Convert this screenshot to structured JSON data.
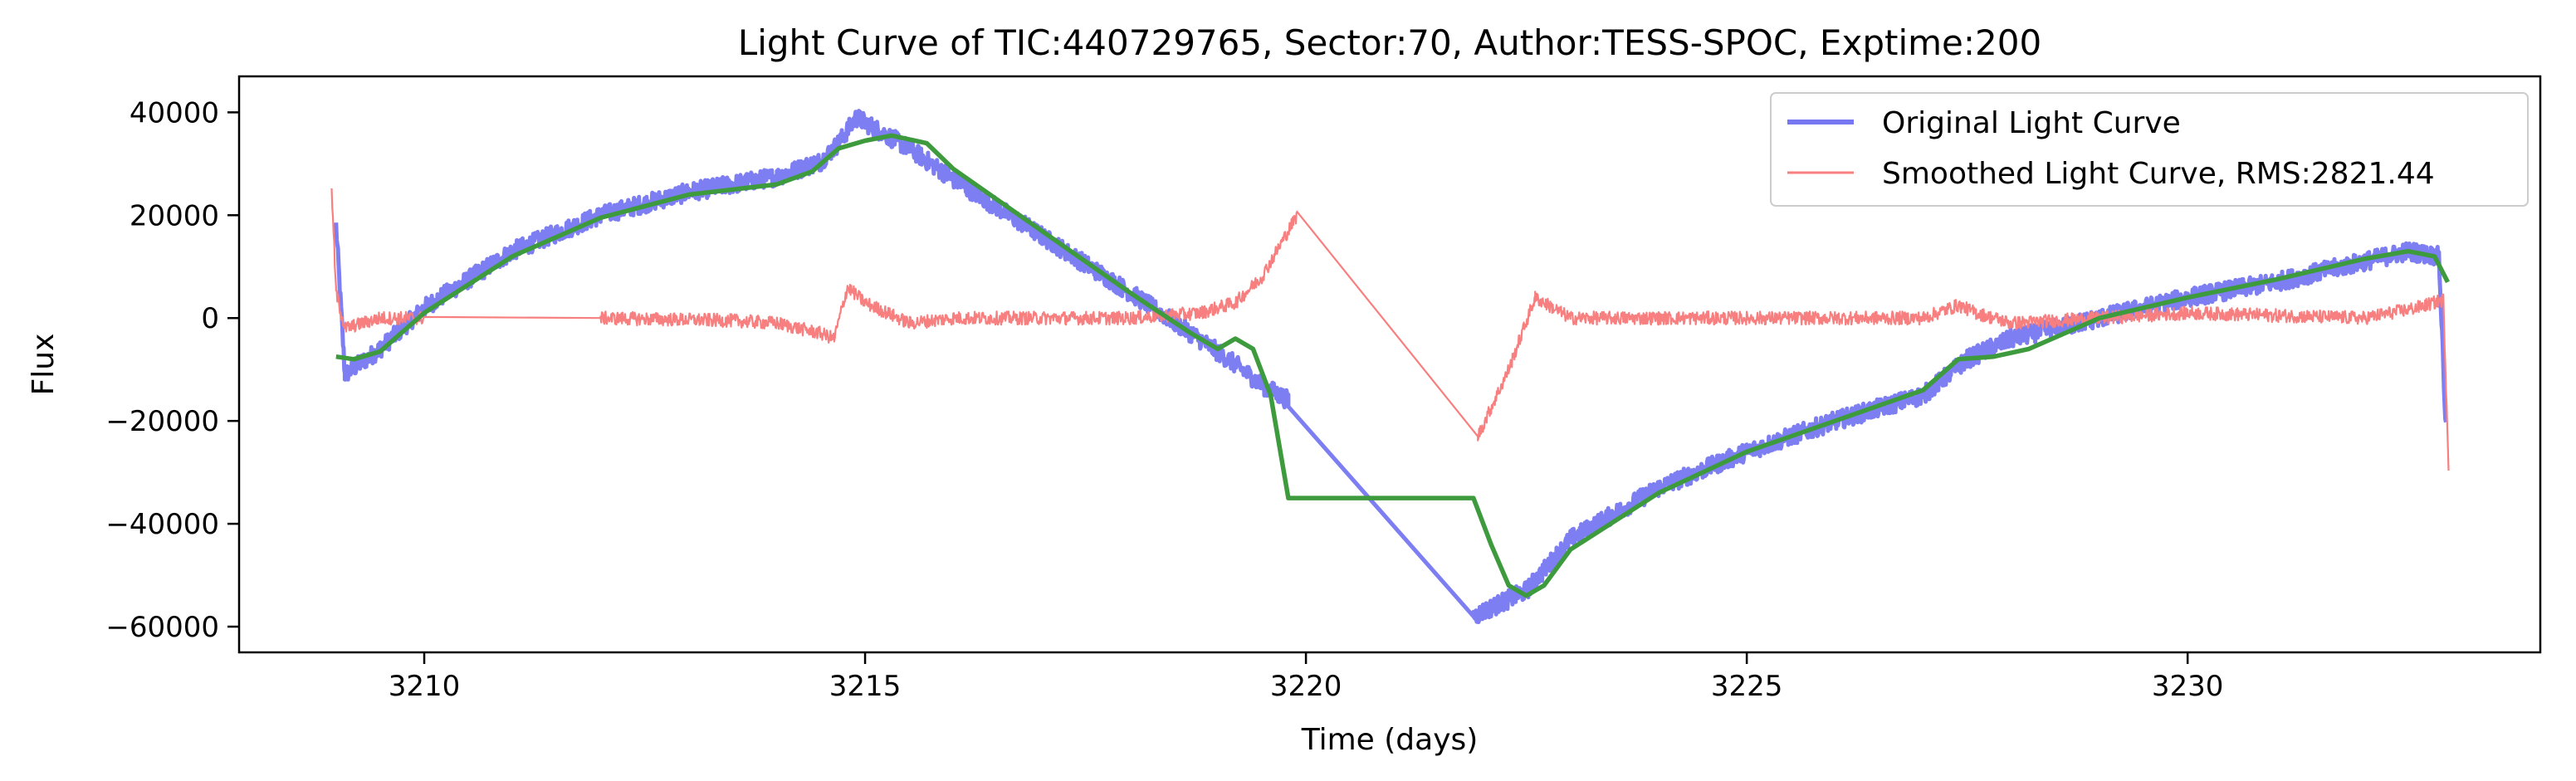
{
  "chart_data": {
    "type": "line",
    "title": "Light Curve of TIC:440729765, Sector:70, Author:TESS-SPOC, Exptime:200",
    "xlabel": "Time (days)",
    "ylabel": "Flux",
    "xlim": [
      3207.9,
      3234.0
    ],
    "ylim": [
      -65000,
      47000
    ],
    "xticks": [
      3210,
      3215,
      3220,
      3225,
      3230
    ],
    "xtick_labels": [
      "3210",
      "3215",
      "3220",
      "3225",
      "3230"
    ],
    "yticks": [
      -60000,
      -40000,
      -20000,
      0,
      20000,
      40000
    ],
    "ytick_labels": [
      "−60000",
      "−40000",
      "−20000",
      "0",
      "20000",
      "40000"
    ],
    "grid": false,
    "legend_position": "top-right",
    "series": [
      {
        "name": "Original Light Curve",
        "color": "#7777f2",
        "noise": 1800,
        "x": [
          3209.0,
          3209.1,
          3209.5,
          3210.0,
          3211.0,
          3212.0,
          3213.0,
          3214.0,
          3214.5,
          3214.7,
          3214.9,
          3215.5,
          3216.0,
          3217.0,
          3218.0,
          3218.7,
          3219.2,
          3219.5,
          3219.8,
          3221.9,
          3222.5,
          3223.0,
          3224.0,
          3225.0,
          3226.0,
          3227.0,
          3227.5,
          3228.0,
          3229.0,
          3230.0,
          3231.0,
          3232.0,
          3232.5,
          3232.85,
          3232.93
        ],
        "y": [
          18000,
          -11000,
          -6000,
          2000,
          13000,
          20000,
          24500,
          27500,
          30500,
          34000,
          39000,
          33000,
          27000,
          16000,
          5000,
          -3000,
          -9000,
          -13000,
          -16000,
          -58000,
          -53000,
          -43000,
          -33000,
          -26000,
          -20000,
          -15000,
          -8000,
          -4000,
          0,
          4000,
          7000,
          11000,
          13000,
          12000,
          -22000
        ]
      },
      {
        "name": "Smoothed Light Curve, RMS:2821.44",
        "color": "#f87f7f",
        "noise": 1300,
        "x": [
          3208.95,
          3209.0,
          3209.1,
          3209.5,
          3210.0,
          3212.0,
          3213.5,
          3214.0,
          3214.5,
          3214.65,
          3214.8,
          3215.0,
          3215.5,
          3216.0,
          3217.0,
          3218.0,
          3218.8,
          3219.2,
          3219.5,
          3219.9,
          3221.95,
          3222.3,
          3222.6,
          3223.0,
          3224.0,
          3225.0,
          3226.0,
          3227.0,
          3227.4,
          3227.6,
          3228.0,
          3229.0,
          3230.0,
          3231.0,
          3232.0,
          3232.6,
          3232.9,
          3232.96
        ],
        "y": [
          25000,
          5000,
          -2000,
          0,
          0,
          0,
          -500,
          -1000,
          -3000,
          -4000,
          6000,
          3000,
          -1000,
          0,
          0,
          0,
          1000,
          3000,
          8000,
          20000,
          -23000,
          -10000,
          4000,
          0,
          0,
          0,
          0,
          0,
          2500,
          1000,
          -1000,
          0,
          1000,
          500,
          0,
          2000,
          3500,
          -29000
        ]
      },
      {
        "color": "#3d9a3d",
        "noise": 0,
        "x": [
          3209.0,
          3209.2,
          3209.5,
          3210.0,
          3211.0,
          3212.0,
          3213.0,
          3214.0,
          3214.4,
          3214.7,
          3215.0,
          3215.3,
          3215.7,
          3216.0,
          3217.0,
          3218.0,
          3218.7,
          3219.0,
          3219.2,
          3219.4,
          3219.6,
          3219.8,
          3221.9,
          3222.1,
          3222.3,
          3222.5,
          3222.7,
          3223.0,
          3224.0,
          3225.0,
          3226.0,
          3227.0,
          3227.4,
          3227.8,
          3228.2,
          3229.0,
          3230.0,
          3231.0,
          3232.0,
          3232.5,
          3232.8,
          3232.95
        ],
        "y": [
          -7500,
          -8000,
          -6500,
          1000,
          12000,
          19500,
          24000,
          26000,
          28500,
          33000,
          34500,
          35500,
          34000,
          29000,
          17000,
          5000,
          -3000,
          -6000,
          -4000,
          -6000,
          -15000,
          -35000,
          -35000,
          -44000,
          -52000,
          -54000,
          -52000,
          -45000,
          -34000,
          -26000,
          -20000,
          -14000,
          -8000,
          -7500,
          -6000,
          0,
          4000,
          7500,
          11500,
          13000,
          12000,
          7000
        ]
      }
    ]
  }
}
